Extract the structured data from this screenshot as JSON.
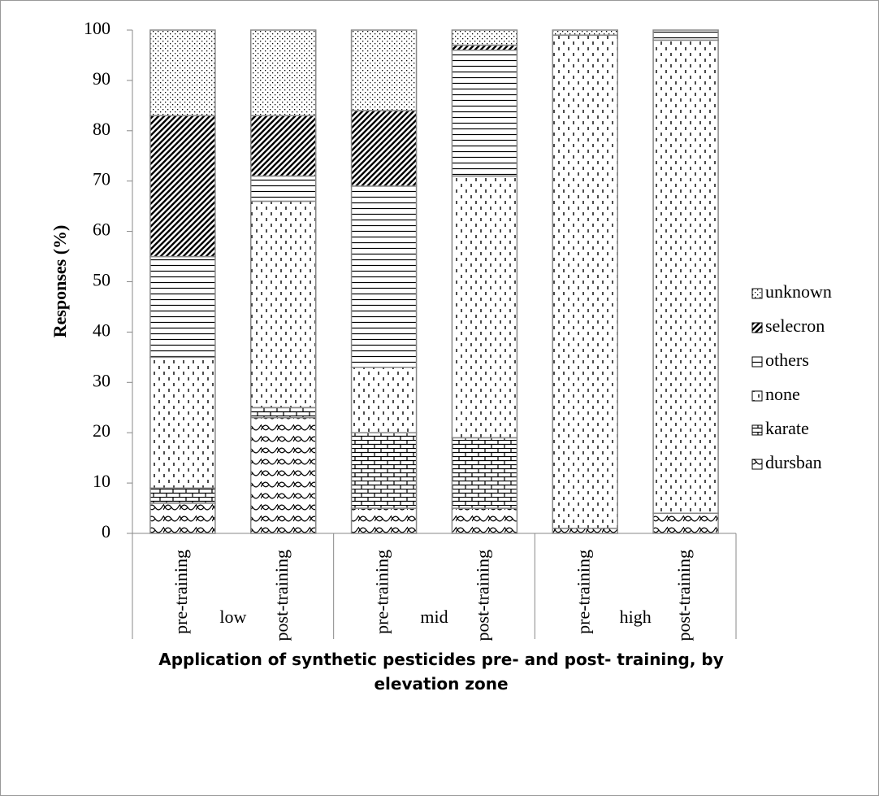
{
  "chart_data": {
    "type": "stacked-bar",
    "y_label": "Responses (%)",
    "x_label": "Application of synthetic pesticides pre- and post- training, by elevation zone",
    "categories": [
      "pre-training",
      "post-training",
      "pre-training",
      "post-training",
      "pre-training",
      "post-training"
    ],
    "groups": [
      "low",
      "mid",
      "high"
    ],
    "ylim": [
      0,
      100
    ],
    "yticks": [
      0,
      10,
      20,
      30,
      40,
      50,
      60,
      70,
      80,
      90,
      100
    ],
    "legend": "right",
    "series": [
      {
        "name": "dursban",
        "color": "#000000",
        "pattern": "weave",
        "values": [
          6,
          23,
          5,
          5,
          1,
          4
        ]
      },
      {
        "name": "karate",
        "color": "#000000",
        "pattern": "brick",
        "values": [
          3,
          2,
          15,
          14,
          0,
          0
        ]
      },
      {
        "name": "none",
        "color": "#000000",
        "pattern": "dashes",
        "values": [
          26,
          41,
          13,
          52,
          98,
          94
        ]
      },
      {
        "name": "others",
        "color": "#000000",
        "pattern": "horizontal",
        "values": [
          20,
          5,
          36,
          25,
          0,
          2
        ]
      },
      {
        "name": "selecron",
        "color": "#000000",
        "pattern": "diagonal",
        "values": [
          28,
          12,
          15,
          1,
          0,
          0
        ]
      },
      {
        "name": "unknown",
        "color": "#000000",
        "pattern": "dots",
        "values": [
          17,
          17,
          16,
          3,
          1,
          0
        ]
      }
    ]
  }
}
